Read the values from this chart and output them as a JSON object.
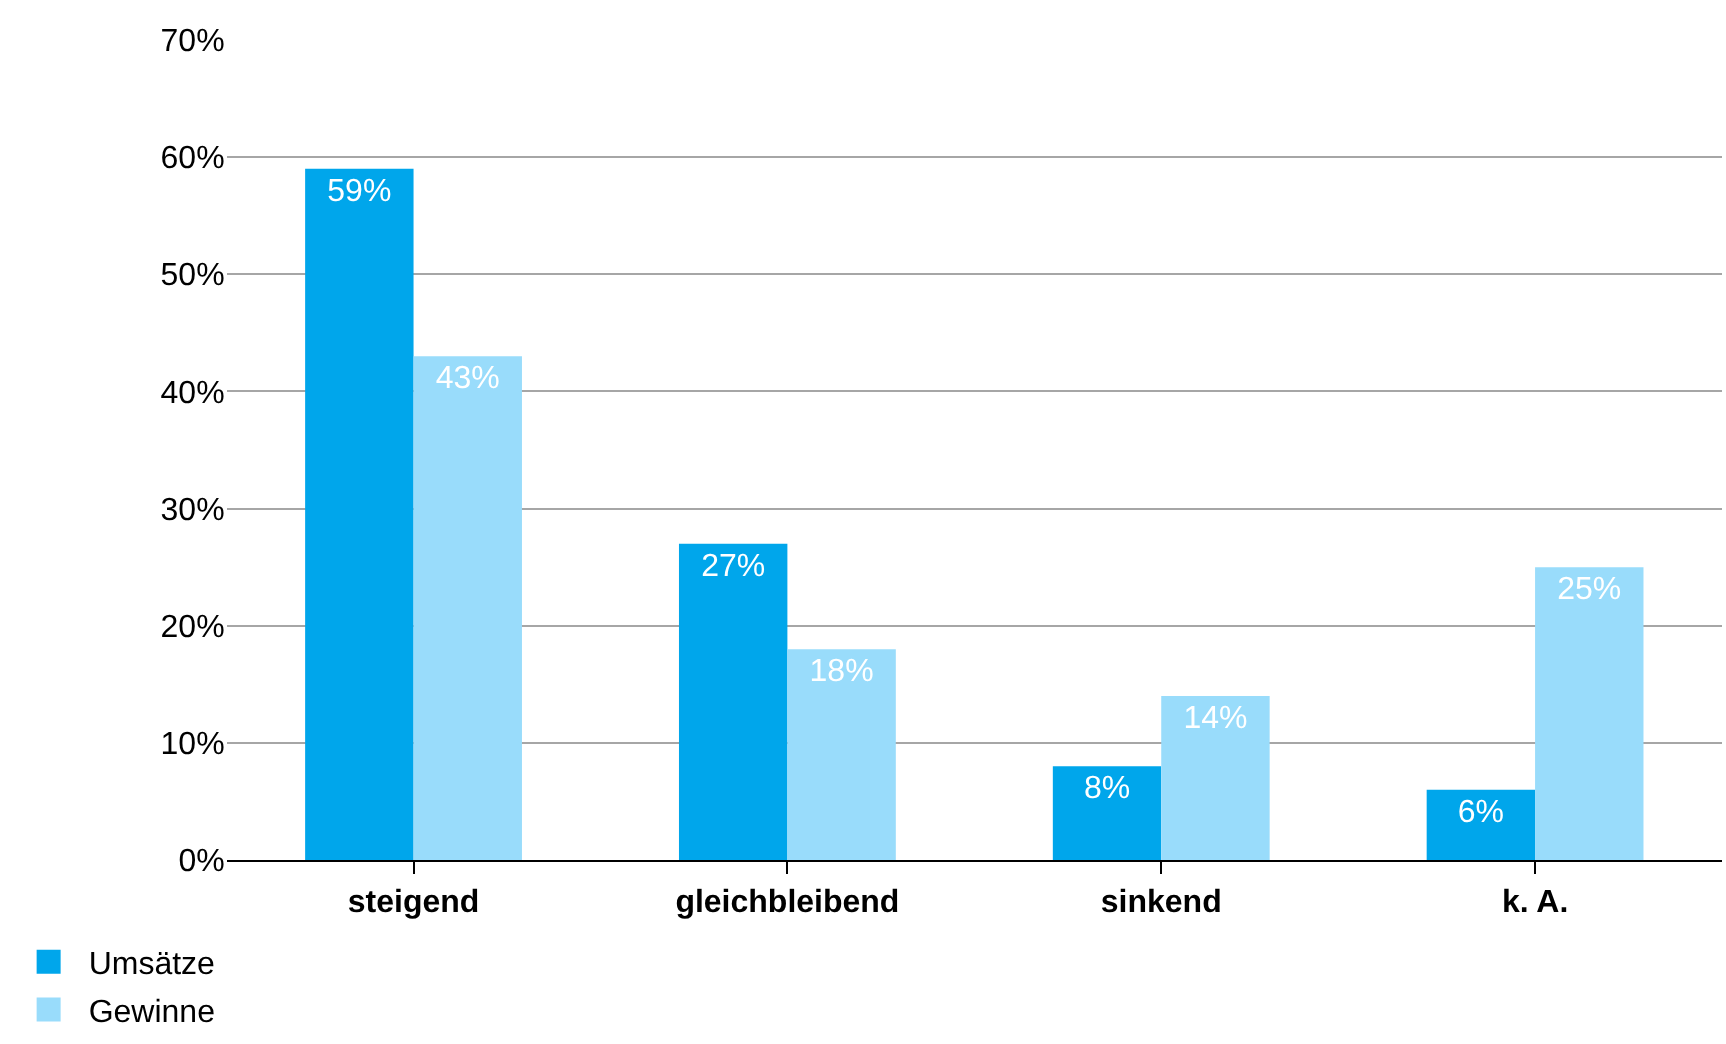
{
  "chart_data": {
    "type": "bar",
    "categories": [
      "steigend",
      "gleichbleibend",
      "sinkend",
      "k. A."
    ],
    "series": [
      {
        "name": "Umsätze",
        "color": "#00a6eb",
        "values": [
          59,
          27,
          8,
          6
        ],
        "value_labels": [
          "59%",
          "27%",
          "8%",
          "6%"
        ]
      },
      {
        "name": "Gewinne",
        "color": "#99dcfb",
        "values": [
          43,
          18,
          14,
          25
        ],
        "value_labels": [
          "43%",
          "18%",
          "14%",
          "25%"
        ]
      }
    ],
    "ylim": [
      0,
      70
    ],
    "yticks": [
      {
        "value": 0,
        "label": "0%"
      },
      {
        "value": 10,
        "label": "10%"
      },
      {
        "value": 20,
        "label": "20%"
      },
      {
        "value": 30,
        "label": "30%"
      },
      {
        "value": 40,
        "label": "40%"
      },
      {
        "value": 50,
        "label": "50%"
      },
      {
        "value": 60,
        "label": "60%"
      },
      {
        "value": 70,
        "label": "70%"
      }
    ],
    "grid": "y",
    "legend": "bottom left"
  }
}
